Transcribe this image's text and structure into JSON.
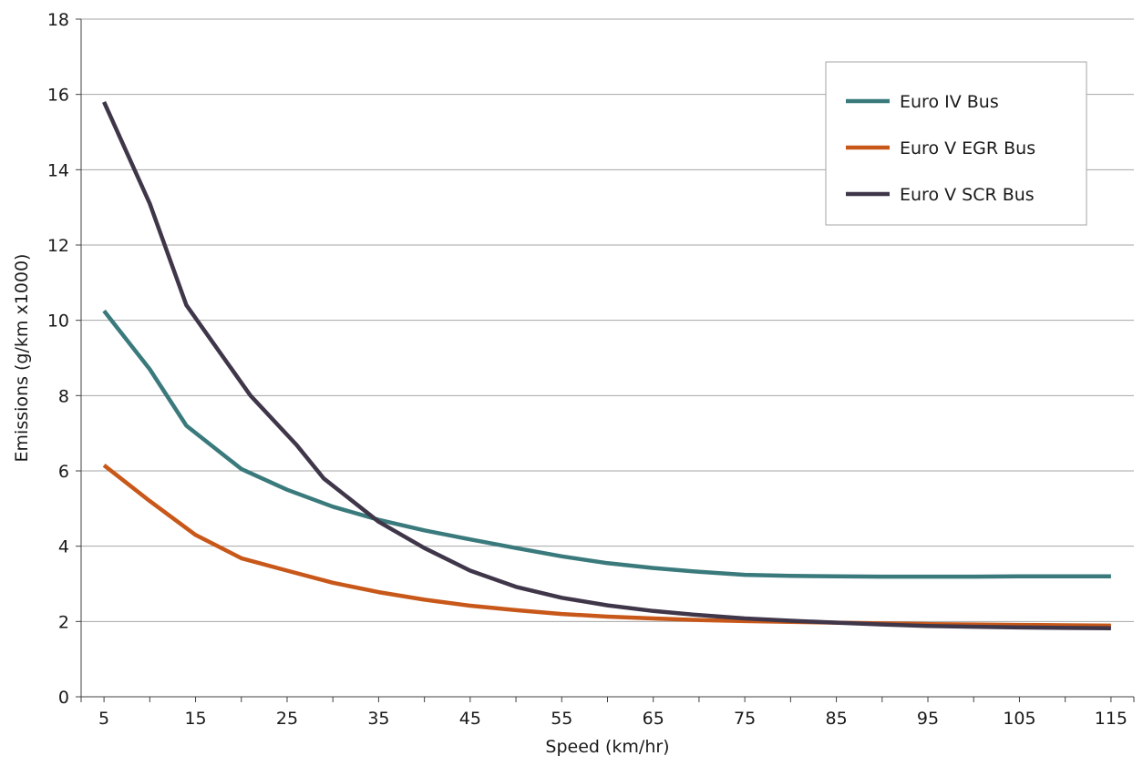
{
  "chart_data": {
    "type": "line",
    "xlabel": "Speed (km/hr)",
    "ylabel": "Emissions (g/km x1000)",
    "x_ticks": [
      "5",
      "15",
      "25",
      "35",
      "45",
      "55",
      "65",
      "75",
      "85",
      "95",
      "105",
      "115"
    ],
    "x_tick_values": [
      5,
      15,
      25,
      35,
      45,
      55,
      65,
      75,
      85,
      95,
      105,
      115
    ],
    "y_ticks": [
      "0",
      "2",
      "4",
      "6",
      "8",
      "10",
      "12",
      "14",
      "16",
      "18"
    ],
    "y_tick_values": [
      0,
      2,
      4,
      6,
      8,
      10,
      12,
      14,
      16,
      18
    ],
    "xlim": [
      2.5,
      117.5
    ],
    "ylim": [
      0,
      18
    ],
    "grid": "horizontal",
    "legend_position": "top-right",
    "series": [
      {
        "name": "Euro IV Bus",
        "color": "#3a7a7c",
        "points": [
          [
            5,
            10.25
          ],
          [
            10,
            8.7
          ],
          [
            14,
            7.2
          ],
          [
            20,
            6.05
          ],
          [
            25,
            5.5
          ],
          [
            30,
            5.05
          ],
          [
            35,
            4.7
          ],
          [
            40,
            4.42
          ],
          [
            45,
            4.18
          ],
          [
            50,
            3.95
          ],
          [
            55,
            3.73
          ],
          [
            60,
            3.55
          ],
          [
            65,
            3.42
          ],
          [
            70,
            3.32
          ],
          [
            75,
            3.24
          ],
          [
            80,
            3.21
          ],
          [
            85,
            3.2
          ],
          [
            90,
            3.19
          ],
          [
            95,
            3.19
          ],
          [
            100,
            3.19
          ],
          [
            105,
            3.2
          ],
          [
            110,
            3.2
          ],
          [
            115,
            3.2
          ]
        ]
      },
      {
        "name": "Euro V EGR Bus",
        "color": "#c8581a",
        "points": [
          [
            5,
            6.15
          ],
          [
            10,
            5.2
          ],
          [
            15,
            4.3
          ],
          [
            20,
            3.68
          ],
          [
            25,
            3.35
          ],
          [
            30,
            3.03
          ],
          [
            35,
            2.78
          ],
          [
            40,
            2.58
          ],
          [
            45,
            2.42
          ],
          [
            50,
            2.3
          ],
          [
            55,
            2.2
          ],
          [
            60,
            2.13
          ],
          [
            65,
            2.08
          ],
          [
            70,
            2.04
          ],
          [
            75,
            2.01
          ],
          [
            80,
            1.99
          ],
          [
            85,
            1.97
          ],
          [
            90,
            1.95
          ],
          [
            95,
            1.93
          ],
          [
            100,
            1.92
          ],
          [
            105,
            1.91
          ],
          [
            110,
            1.9
          ],
          [
            115,
            1.89
          ]
        ]
      },
      {
        "name": "Euro V SCR Bus",
        "color": "#403649",
        "points": [
          [
            5,
            15.8
          ],
          [
            10,
            13.1
          ],
          [
            14,
            10.4
          ],
          [
            21,
            8.0
          ],
          [
            26,
            6.7
          ],
          [
            29,
            5.8
          ],
          [
            35,
            4.65
          ],
          [
            40,
            3.95
          ],
          [
            45,
            3.35
          ],
          [
            50,
            2.92
          ],
          [
            55,
            2.63
          ],
          [
            60,
            2.43
          ],
          [
            65,
            2.28
          ],
          [
            70,
            2.17
          ],
          [
            75,
            2.08
          ],
          [
            80,
            2.02
          ],
          [
            85,
            1.97
          ],
          [
            90,
            1.92
          ],
          [
            95,
            1.88
          ],
          [
            100,
            1.86
          ],
          [
            105,
            1.84
          ],
          [
            110,
            1.83
          ],
          [
            115,
            1.82
          ]
        ]
      }
    ]
  }
}
